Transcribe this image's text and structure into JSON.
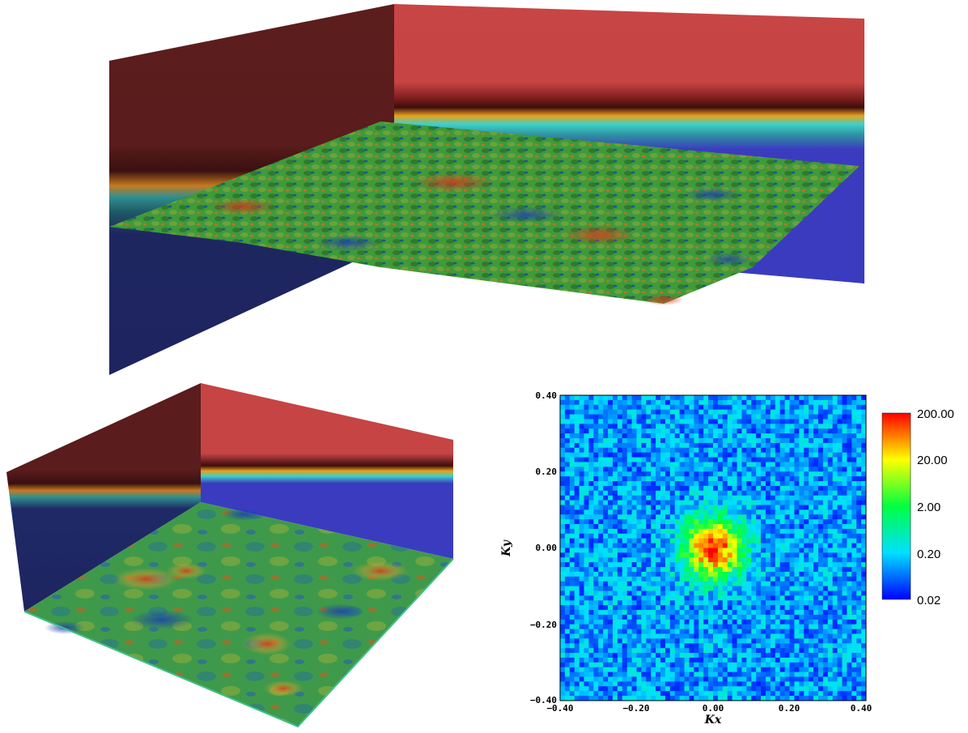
{
  "spectrum": {
    "xlabel": "Kx",
    "ylabel": "Ky",
    "xticks": [
      "−0.40",
      "−0.20",
      "0.00",
      "0.20",
      "0.40"
    ],
    "yticks": [
      "−0.40",
      "−0.20",
      "0.00",
      "0.20",
      "0.40"
    ],
    "colorbar_labels": [
      "200.00",
      "20.00",
      "2.00",
      "0.20",
      "0.02"
    ]
  },
  "chart_data": {
    "type": "heatmap",
    "xlabel": "Kx",
    "ylabel": "Ky",
    "xlim": [
      -0.4,
      0.4
    ],
    "ylim": [
      -0.4,
      0.4
    ],
    "color_scale": "log",
    "color_range": [
      0.02,
      200.0
    ],
    "colorbar_ticks": [
      200.0,
      20.0,
      2.0,
      0.2,
      0.02
    ],
    "peak_value": 200.0,
    "peak_location": [
      0.0,
      0.0
    ],
    "background_value": 0.1
  },
  "colors": {
    "wall_red": "#c64444",
    "wall_dark_red": "#5a1c1c",
    "wall_blue": "#3b3bc0",
    "wall_dark_blue": "#1e2460",
    "surface_green": "#3f9a3a"
  }
}
